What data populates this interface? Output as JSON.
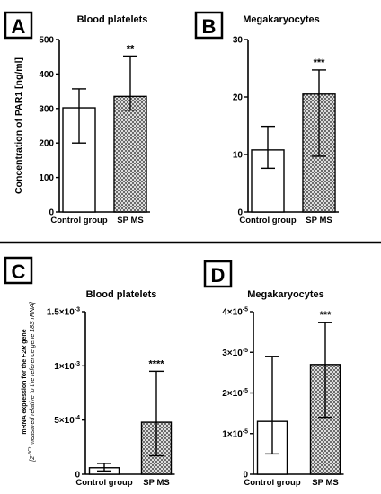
{
  "chart_data": [
    {
      "panel": "A",
      "type": "bar",
      "title": "Blood platelets",
      "ylabel": "Concentration of PAR1 [ng/ml]",
      "ylim": [
        0,
        500
      ],
      "yticks": [
        "0",
        "100",
        "200",
        "300",
        "400",
        "500"
      ],
      "categories": [
        "Control group",
        "SP MS"
      ],
      "values": [
        302,
        335
      ],
      "error_low": [
        200,
        295
      ],
      "error_high": [
        357,
        452
      ],
      "annotations": [
        "",
        "**"
      ],
      "fill_patterns": [
        "white",
        "hatched"
      ]
    },
    {
      "panel": "B",
      "type": "bar",
      "title": "Megakaryocytes",
      "ylabel": "",
      "ylim": [
        0,
        30
      ],
      "yticks": [
        "0",
        "10",
        "20",
        "30"
      ],
      "categories": [
        "Control group",
        "SP MS"
      ],
      "values": [
        10.8,
        20.5
      ],
      "error_low": [
        7.6,
        9.7
      ],
      "error_high": [
        14.9,
        24.7
      ],
      "annotations": [
        "",
        "***"
      ],
      "fill_patterns": [
        "white",
        "hatched"
      ]
    },
    {
      "panel": "C",
      "type": "bar",
      "title": "Blood platelets",
      "ylabel_main": "mRNA expression for the ",
      "ylabel_gene": "F2R",
      "ylabel_main_end": " gene",
      "ylabel_sub_a": "[2",
      "ylabel_sup": "-ΔCt",
      "ylabel_sub_b": " measured relative to the reference gene ",
      "ylabel_ref": "18S rRNA",
      "ylabel_sub_c": "]",
      "ylim": [
        0,
        0.0015
      ],
      "ytick_values": [
        0,
        0.0005,
        0.001,
        0.0015
      ],
      "ytick_mant": [
        "0",
        "5×10",
        "1×10",
        "1.5×10"
      ],
      "ytick_exp": [
        "",
        "-4",
        "-3",
        "-3"
      ],
      "categories": [
        "Control group",
        "SP MS"
      ],
      "values": [
        6e-05,
        0.00048
      ],
      "error_low": [
        3e-05,
        0.00017
      ],
      "error_high": [
        0.0001,
        0.00095
      ],
      "annotations": [
        "",
        "****"
      ],
      "fill_patterns": [
        "white",
        "hatched"
      ]
    },
    {
      "panel": "D",
      "type": "bar",
      "title": "Megakaryocytes",
      "ylabel": "",
      "ylim": [
        0,
        4e-05
      ],
      "ytick_values": [
        0,
        1e-05,
        2e-05,
        3e-05,
        4e-05
      ],
      "ytick_mant": [
        "0",
        "1×10",
        "2×10",
        "3×10",
        "4×10"
      ],
      "ytick_exp": [
        "",
        "-5",
        "-5",
        "-5",
        "-5"
      ],
      "categories": [
        "Control group",
        "SP MS"
      ],
      "values": [
        1.3e-05,
        2.7e-05
      ],
      "error_low": [
        5e-06,
        1.4e-05
      ],
      "error_high": [
        2.9e-05,
        3.73e-05
      ],
      "annotations": [
        "",
        "***"
      ],
      "fill_patterns": [
        "white",
        "hatched"
      ]
    }
  ],
  "colors": {
    "ink": "#000000",
    "background": "#ffffff",
    "hatch": "#555555"
  }
}
